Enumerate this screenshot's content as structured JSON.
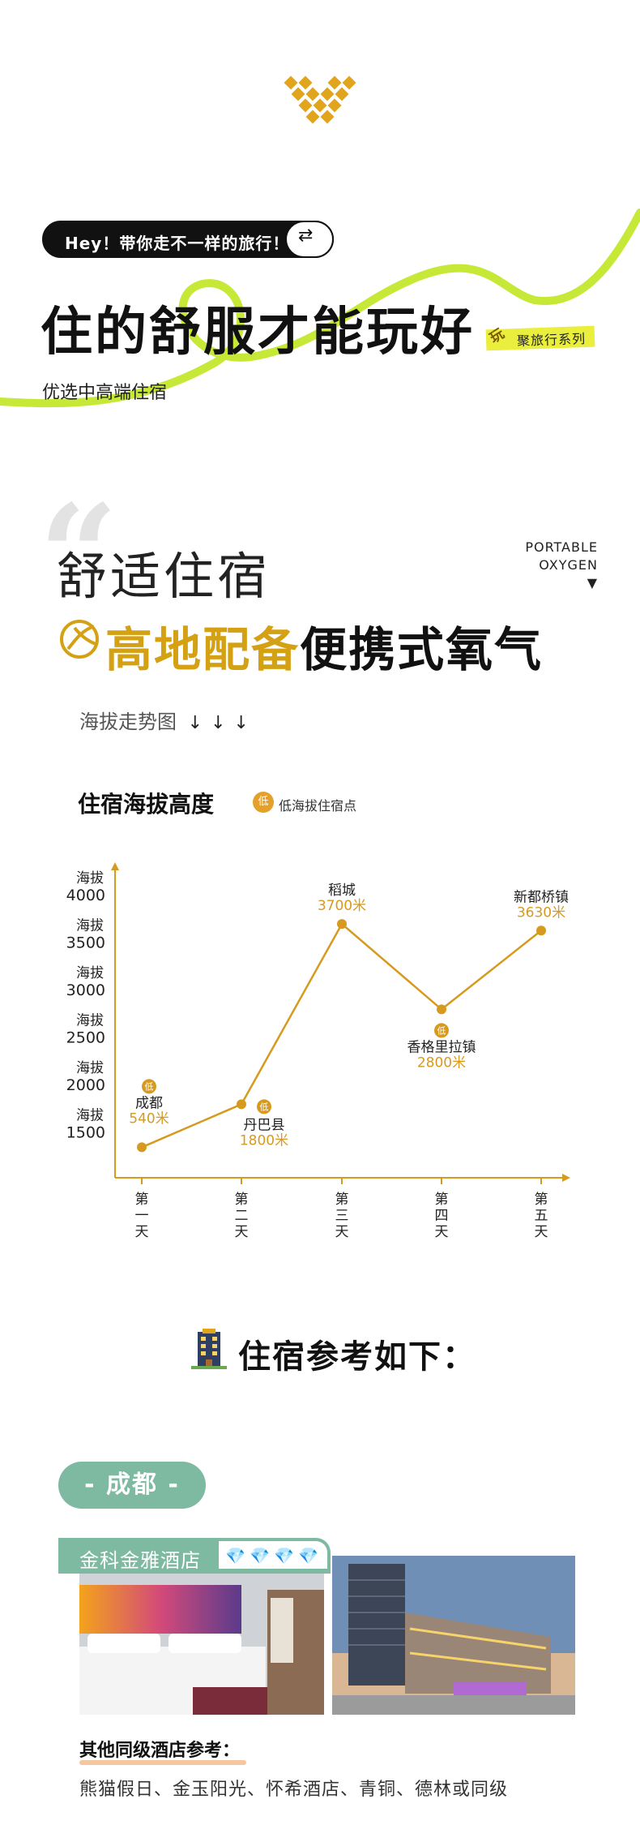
{
  "header": {
    "tagline": "Hey！带你走不一样的旅行！",
    "toggle_icon": "swap-icon",
    "title": "住的舒服才能玩好",
    "subtitle": "优选中高端住宿",
    "series_play": "玩",
    "series_label": "聚旅行系列",
    "accent_green": "#c6e836",
    "accent_gold": "#e0a51c"
  },
  "section": {
    "heading_light": "舒适住宿",
    "portable_line1": "PORTABLE",
    "portable_line2": "OXYGEN",
    "portable_arrow": "▼",
    "heading_accent": "高地配备",
    "heading_rest": "便携式氧气",
    "trend_label": "海拔走势图",
    "trend_arrows": "↓↓↓"
  },
  "chart_data": {
    "type": "line",
    "title": "住宿海拔高度",
    "legend_badge": "低",
    "legend_text": "低海拔住宿点",
    "y_ticks": [
      {
        "prefix": "海拔",
        "value": "4000"
      },
      {
        "prefix": "海拔",
        "value": "3500"
      },
      {
        "prefix": "海拔",
        "value": "3000"
      },
      {
        "prefix": "海拔",
        "value": "2500"
      },
      {
        "prefix": "海拔",
        "value": "2000"
      },
      {
        "prefix": "海拔",
        "value": "1500"
      }
    ],
    "x_labels": [
      "第一天",
      "第二天",
      "第三天",
      "第四天",
      "第五天"
    ],
    "points": [
      {
        "day": "第一天",
        "city": "成都",
        "value_label": "540米",
        "low": true
      },
      {
        "day": "第二天",
        "city": "丹巴县",
        "value_label": "1800米",
        "low": true
      },
      {
        "day": "第三天",
        "city": "稻城",
        "value_label": "3700米",
        "low": false
      },
      {
        "day": "第四天",
        "city": "香格里拉镇",
        "value_label": "2800米",
        "low": true
      },
      {
        "day": "第五天",
        "city": "新都桥镇",
        "value_label": "3630米",
        "low": false
      }
    ],
    "line_color": "#d69a1f",
    "label_color": "#d69a1f"
  },
  "hotels": {
    "heading": "住宿参考如下：",
    "building_icon": "building-icon",
    "city": "- 成都 -",
    "hotel_name": "金科金雅酒店",
    "diamond_count": 4,
    "diamond_icon": "diamond-icon",
    "other_title": "其他同级酒店参考：",
    "other_list": "熊猫假日、金玉阳光、怀希酒店、青铜、德林或同级"
  }
}
